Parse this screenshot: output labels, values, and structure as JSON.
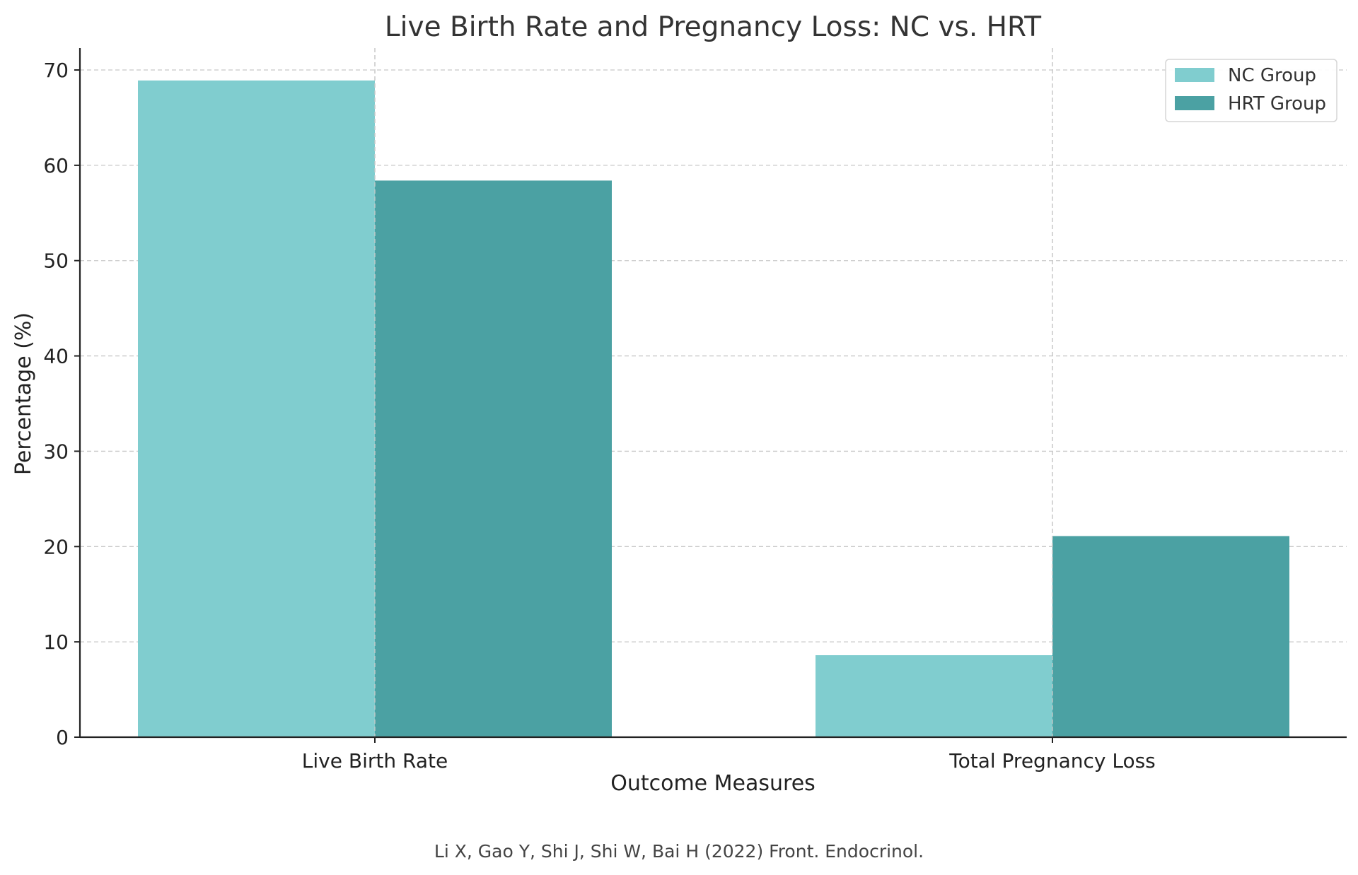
{
  "chart_data": {
    "type": "bar",
    "title": "Live Birth Rate and Pregnancy Loss: NC vs. HRT",
    "xlabel": "Outcome Measures",
    "ylabel": "Percentage (%)",
    "categories": [
      "Live Birth Rate",
      "Total Pregnancy Loss"
    ],
    "series": [
      {
        "name": "NC Group",
        "values": [
          68.9,
          8.6
        ],
        "color": "#80cdcf"
      },
      {
        "name": "HRT Group",
        "values": [
          58.4,
          21.1
        ],
        "color": "#4ba1a3"
      }
    ],
    "ylim": [
      0,
      72.3
    ],
    "yticks": [
      0,
      10,
      20,
      30,
      40,
      50,
      60,
      70
    ],
    "grid": true,
    "legend_position": "top-right",
    "caption": "Li X, Gao Y, Shi J, Shi W, Bai H (2022) Front. Endocrinol."
  }
}
